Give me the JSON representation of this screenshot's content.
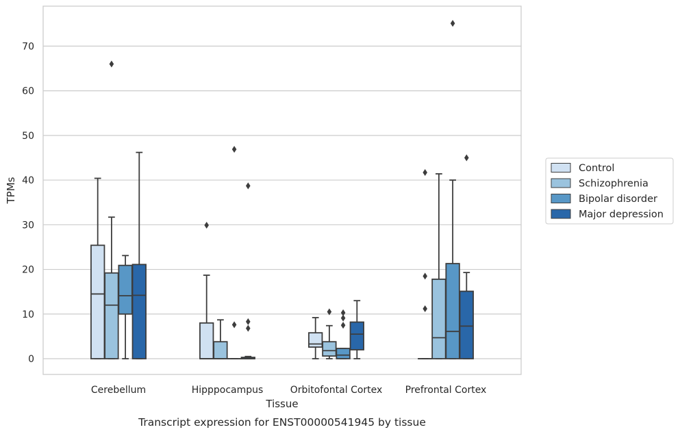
{
  "chart_data": {
    "type": "box",
    "title": "",
    "xlabel": "Tissue",
    "ylabel": "TPMs",
    "caption": "Transcript expression for ENST00000541945 by tissue",
    "ylim": [
      -3.5,
      79
    ],
    "yticks": [
      0,
      10,
      20,
      30,
      40,
      50,
      60,
      70
    ],
    "grid": "horizontal",
    "legend_position": "right",
    "categories": [
      "Cerebellum",
      "Hipppocampus",
      "Orbitofontal Cortex",
      "Prefrontal Cortex"
    ],
    "series": [
      {
        "name": "Control",
        "color": "#d0e1f2",
        "boxes": [
          {
            "whislo": 0,
            "q1": 0,
            "med": 14.5,
            "q3": 25.4,
            "whishi": 40.4,
            "fliers": []
          },
          {
            "whislo": 0,
            "q1": 0,
            "med": 0,
            "q3": 8.0,
            "whishi": 18.7,
            "fliers": [
              29.9
            ]
          },
          {
            "whislo": 0,
            "q1": 2.6,
            "med": 3.3,
            "q3": 5.8,
            "whishi": 9.2,
            "fliers": []
          },
          {
            "whislo": 0,
            "q1": 0,
            "med": 0,
            "q3": 0,
            "whishi": 0,
            "fliers": [
              11.2,
              18.5,
              41.7
            ]
          }
        ]
      },
      {
        "name": "Schizophrenia",
        "color": "#9ac3de",
        "boxes": [
          {
            "whislo": 0,
            "q1": 0,
            "med": 12.0,
            "q3": 19.2,
            "whishi": 31.7,
            "fliers": [
              66.0
            ]
          },
          {
            "whislo": 0,
            "q1": 0,
            "med": 0,
            "q3": 3.8,
            "whishi": 8.7,
            "fliers": []
          },
          {
            "whislo": 0,
            "q1": 0.6,
            "med": 1.8,
            "q3": 3.8,
            "whishi": 7.4,
            "fliers": [
              10.5
            ]
          },
          {
            "whislo": 0,
            "q1": 0,
            "med": 4.7,
            "q3": 17.8,
            "whishi": 41.4,
            "fliers": []
          }
        ]
      },
      {
        "name": "Bipolar disorder",
        "color": "#5897c6",
        "boxes": [
          {
            "whislo": 0,
            "q1": 10.0,
            "med": 14.1,
            "q3": 20.9,
            "whishi": 23.1,
            "fliers": []
          },
          {
            "whislo": 0,
            "q1": 0,
            "med": 0,
            "q3": 0,
            "whishi": 0,
            "fliers": [
              7.6,
              46.9
            ]
          },
          {
            "whislo": 0,
            "q1": 0,
            "med": 0.8,
            "q3": 2.3,
            "whishi": 2.3,
            "fliers": [
              7.5,
              9.1,
              10.3
            ]
          },
          {
            "whislo": 0,
            "q1": 0,
            "med": 6.1,
            "q3": 21.3,
            "whishi": 40.0,
            "fliers": [
              75.1
            ]
          }
        ]
      },
      {
        "name": "Major depression",
        "color": "#2967a9",
        "boxes": [
          {
            "whislo": 0,
            "q1": 0,
            "med": 14.2,
            "q3": 21.1,
            "whishi": 46.2,
            "fliers": []
          },
          {
            "whislo": 0,
            "q1": 0,
            "med": 0,
            "q3": 0.3,
            "whishi": 0.5,
            "fliers": [
              6.8,
              8.3,
              38.7
            ]
          },
          {
            "whislo": 0,
            "q1": 2.0,
            "med": 5.5,
            "q3": 8.2,
            "whishi": 13.0,
            "fliers": []
          },
          {
            "whislo": 0,
            "q1": 0,
            "med": 7.3,
            "q3": 15.1,
            "whishi": 19.3,
            "fliers": [
              45.0
            ]
          }
        ]
      }
    ]
  }
}
